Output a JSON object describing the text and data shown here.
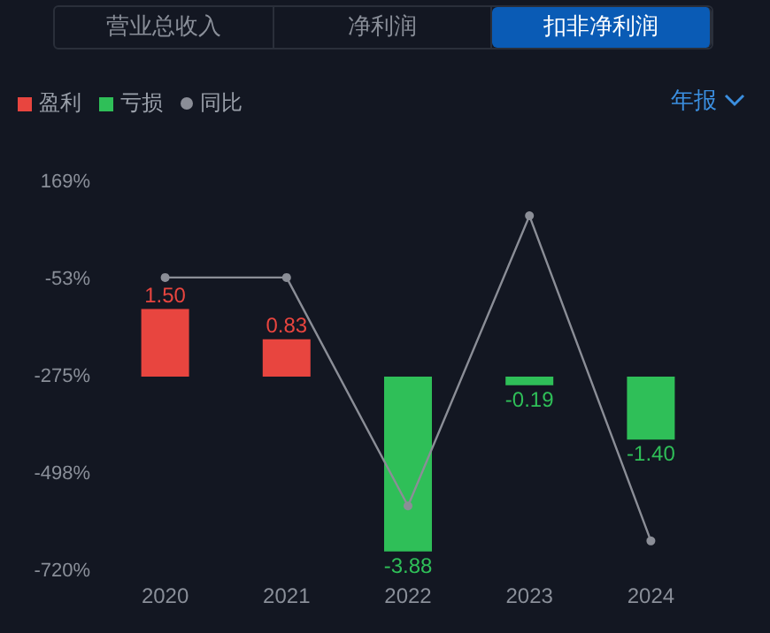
{
  "chart_data": {
    "type": "bar",
    "annotations": [
      "营业总收入",
      "净利润",
      "扣非净利润",
      "年报"
    ],
    "categories": [
      "2020",
      "2021",
      "2022",
      "2023",
      "2024"
    ],
    "series": [
      {
        "name": "盈利",
        "axis": "y2",
        "color": "#e8453f",
        "values": [
          1.5,
          0.83,
          null,
          null,
          null
        ],
        "value_labels": [
          "1.50",
          "0.83",
          null,
          null,
          null
        ]
      },
      {
        "name": "亏损",
        "axis": "y2",
        "color": "#2fbf58",
        "values": [
          null,
          null,
          -3.88,
          -0.19,
          -1.4
        ],
        "value_labels": [
          null,
          null,
          "-3.88",
          "-0.19",
          "-1.40"
        ]
      },
      {
        "name": "同比",
        "type": "line",
        "color": "#8b8e97",
        "values": [
          -49,
          -49,
          -571,
          92,
          -651
        ]
      }
    ],
    "ylim": [
      -720,
      169
    ],
    "yticks": [
      {
        "value": 169,
        "label": "169%"
      },
      {
        "value": -53,
        "label": "-53%"
      },
      {
        "value": -275,
        "label": "-275%"
      },
      {
        "value": -498,
        "label": "-498%"
      },
      {
        "value": -720,
        "label": "-720%"
      }
    ],
    "grid": false,
    "legend": "top left",
    "marker": "circle",
    "line_style": "solid"
  }
}
